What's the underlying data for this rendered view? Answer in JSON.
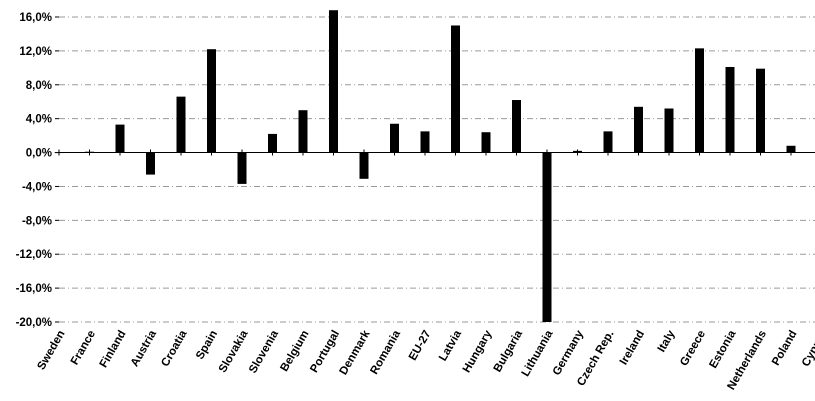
{
  "chart_data": {
    "type": "bar",
    "title": "",
    "xlabel": "",
    "ylabel": "",
    "ylim": [
      -20,
      16
    ],
    "y_ticks": [
      16,
      12,
      8,
      4,
      0,
      -4,
      -8,
      -12,
      -16,
      -20
    ],
    "y_tick_labels": [
      "16,0%",
      "12,0%",
      "8,0%",
      "4,0%",
      "0,0%",
      "-4,0%",
      "-8,0%",
      "-12,0%",
      "-16,0%",
      "-20,0%"
    ],
    "grid": "horizontal dash-dot",
    "legend": "none",
    "bar_color": "#000000",
    "categories": [
      "Sweden",
      "France",
      "Finland",
      "Austria",
      "Croatia",
      "Spain",
      "Slovakia",
      "Slovenia",
      "Belgium",
      "Portugal",
      "Denmark",
      "Romania",
      "EU-27",
      "Latvia",
      "Hungary",
      "Bulgaria",
      "Lithuania",
      "Germany",
      "Czech Rep.",
      "Ireland",
      "Italy",
      "Greece",
      "Estonia",
      "Netherlands",
      "Poland",
      "Cyprus"
    ],
    "values": [
      0.0,
      0.1,
      3.3,
      -2.6,
      6.6,
      12.2,
      -3.7,
      2.2,
      5.0,
      16.8,
      -3.1,
      3.4,
      2.5,
      15.0,
      2.4,
      6.2,
      -20.0,
      0.2,
      2.5,
      5.4,
      5.2,
      12.3,
      10.1,
      9.9,
      0.8,
      0.0
    ]
  }
}
